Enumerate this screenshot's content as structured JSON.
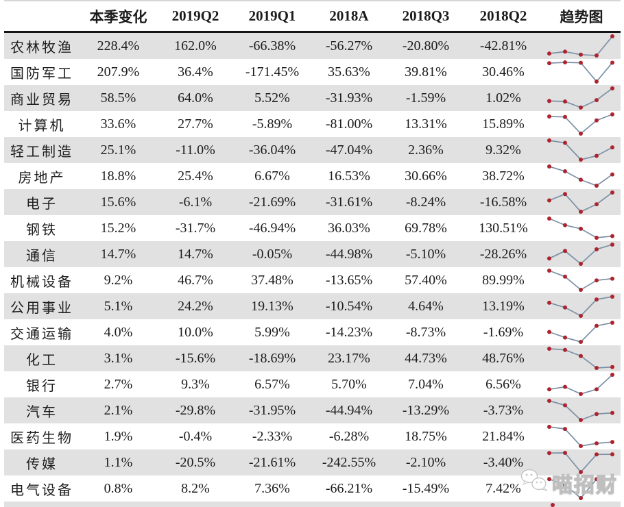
{
  "table": {
    "columns": [
      "",
      "本季变化",
      "2019Q2",
      "2019Q1",
      "2018A",
      "2018Q3",
      "2018Q2",
      "趋势图"
    ],
    "rows": [
      {
        "sector": "农林牧渔",
        "values": [
          "228.4%",
          "162.0%",
          "-66.38%",
          "-56.27%",
          "-20.80%",
          "-42.81%"
        ]
      },
      {
        "sector": "国防军工",
        "values": [
          "207.9%",
          "36.4%",
          "-171.45%",
          "35.63%",
          "39.81%",
          "30.46%"
        ]
      },
      {
        "sector": "商业贸易",
        "values": [
          "58.5%",
          "64.0%",
          "5.52%",
          "-31.93%",
          "-1.59%",
          "1.02%"
        ]
      },
      {
        "sector": "计算机",
        "values": [
          "33.6%",
          "27.7%",
          "-5.89%",
          "-81.00%",
          "13.31%",
          "15.89%"
        ]
      },
      {
        "sector": "轻工制造",
        "values": [
          "25.1%",
          "-11.0%",
          "-36.04%",
          "-47.04%",
          "2.36%",
          "9.32%"
        ]
      },
      {
        "sector": "房地产",
        "values": [
          "18.8%",
          "25.4%",
          "6.67%",
          "16.53%",
          "30.66%",
          "38.72%"
        ]
      },
      {
        "sector": "电子",
        "values": [
          "15.6%",
          "-6.1%",
          "-21.69%",
          "-31.61%",
          "-8.24%",
          "-16.58%"
        ]
      },
      {
        "sector": "钢铁",
        "values": [
          "15.2%",
          "-31.7%",
          "-46.94%",
          "36.03%",
          "69.78%",
          "130.51%"
        ]
      },
      {
        "sector": "通信",
        "values": [
          "14.7%",
          "14.7%",
          "-0.05%",
          "-44.98%",
          "-5.10%",
          "-28.26%"
        ]
      },
      {
        "sector": "机械设备",
        "values": [
          "9.2%",
          "46.7%",
          "37.48%",
          "-13.65%",
          "57.40%",
          "89.99%"
        ]
      },
      {
        "sector": "公用事业",
        "values": [
          "5.1%",
          "24.2%",
          "19.13%",
          "-10.54%",
          "4.64%",
          "13.19%"
        ]
      },
      {
        "sector": "交通运输",
        "values": [
          "4.0%",
          "10.0%",
          "5.99%",
          "-14.23%",
          "-8.73%",
          "-1.69%"
        ]
      },
      {
        "sector": "化工",
        "values": [
          "3.1%",
          "-15.6%",
          "-18.69%",
          "23.17%",
          "44.73%",
          "48.76%"
        ]
      },
      {
        "sector": "银行",
        "values": [
          "2.7%",
          "9.3%",
          "6.57%",
          "5.70%",
          "7.04%",
          "6.56%"
        ]
      },
      {
        "sector": "汽车",
        "values": [
          "2.1%",
          "-29.8%",
          "-31.95%",
          "-44.94%",
          "-13.29%",
          "-3.73%"
        ]
      },
      {
        "sector": "医药生物",
        "values": [
          "1.9%",
          "-0.4%",
          "-2.33%",
          "-6.28%",
          "18.75%",
          "21.84%"
        ]
      },
      {
        "sector": "传媒",
        "values": [
          "1.1%",
          "-20.5%",
          "-21.61%",
          "-242.55%",
          "-2.10%",
          "-3.40%"
        ]
      },
      {
        "sector": "电气设备",
        "values": [
          "0.8%",
          "8.2%",
          "7.36%",
          "-66.21%",
          "-15.49%",
          "7.42%"
        ]
      }
    ]
  },
  "watermark": {
    "label": "喵招财",
    "icon": "wechat-icon"
  },
  "colors": {
    "stripe": "#e1e1e1",
    "text": "#1c1c1c",
    "spark_line": "#7b90a5",
    "spark_dot": "#ae232d",
    "header_rule": "#141414",
    "top_rule": "#d6d6d6"
  },
  "chart_data": {
    "type": "table",
    "title": "",
    "columns": [
      "本季变化",
      "2019Q2",
      "2019Q1",
      "2018A",
      "2018Q3",
      "2018Q2",
      "趋势图"
    ],
    "rows": [
      {
        "label": "农林牧渔",
        "values": [
          228.4,
          162.0,
          -66.38,
          -56.27,
          -20.8,
          -42.81
        ]
      },
      {
        "label": "国防军工",
        "values": [
          207.9,
          36.4,
          -171.45,
          35.63,
          39.81,
          30.46
        ]
      },
      {
        "label": "商业贸易",
        "values": [
          58.5,
          64.0,
          5.52,
          -31.93,
          -1.59,
          1.02
        ]
      },
      {
        "label": "计算机",
        "values": [
          33.6,
          27.7,
          -5.89,
          -81.0,
          13.31,
          15.89
        ]
      },
      {
        "label": "轻工制造",
        "values": [
          25.1,
          -11.0,
          -36.04,
          -47.04,
          2.36,
          9.32
        ]
      },
      {
        "label": "房地产",
        "values": [
          18.8,
          25.4,
          6.67,
          16.53,
          30.66,
          38.72
        ]
      },
      {
        "label": "电子",
        "values": [
          15.6,
          -6.1,
          -21.69,
          -31.61,
          -8.24,
          -16.58
        ]
      },
      {
        "label": "钢铁",
        "values": [
          15.2,
          -31.7,
          -46.94,
          36.03,
          69.78,
          130.51
        ]
      },
      {
        "label": "通信",
        "values": [
          14.7,
          14.7,
          -0.05,
          -44.98,
          -5.1,
          -28.26
        ]
      },
      {
        "label": "机械设备",
        "values": [
          9.2,
          46.7,
          37.48,
          -13.65,
          57.4,
          89.99
        ]
      },
      {
        "label": "公用事业",
        "values": [
          5.1,
          24.2,
          19.13,
          -10.54,
          4.64,
          13.19
        ]
      },
      {
        "label": "交通运输",
        "values": [
          4.0,
          10.0,
          5.99,
          -14.23,
          -8.73,
          -1.69
        ]
      },
      {
        "label": "化工",
        "values": [
          3.1,
          -15.6,
          -18.69,
          23.17,
          44.73,
          48.76
        ]
      },
      {
        "label": "银行",
        "values": [
          2.7,
          9.3,
          6.57,
          5.7,
          7.04,
          6.56
        ]
      },
      {
        "label": "汽车",
        "values": [
          2.1,
          -29.8,
          -31.95,
          -44.94,
          -13.29,
          -3.73
        ]
      },
      {
        "label": "医药生物",
        "values": [
          1.9,
          -0.4,
          -2.33,
          -6.28,
          18.75,
          21.84
        ]
      },
      {
        "label": "传媒",
        "values": [
          1.1,
          -20.5,
          -21.61,
          -242.55,
          -2.1,
          -3.4
        ]
      },
      {
        "label": "电气设备",
        "values": [
          0.8,
          8.2,
          7.36,
          -66.21,
          -15.49,
          7.42
        ]
      }
    ],
    "trend_sparklines": {
      "column_label": "趋势图",
      "type": "line",
      "x_order": [
        "2018Q2",
        "2018Q3",
        "2018A",
        "2019Q1",
        "2019Q2"
      ],
      "note": "each row sparkline plots that row's values in chronological order, normalized per row"
    },
    "legend_position": "none",
    "grid": false
  }
}
